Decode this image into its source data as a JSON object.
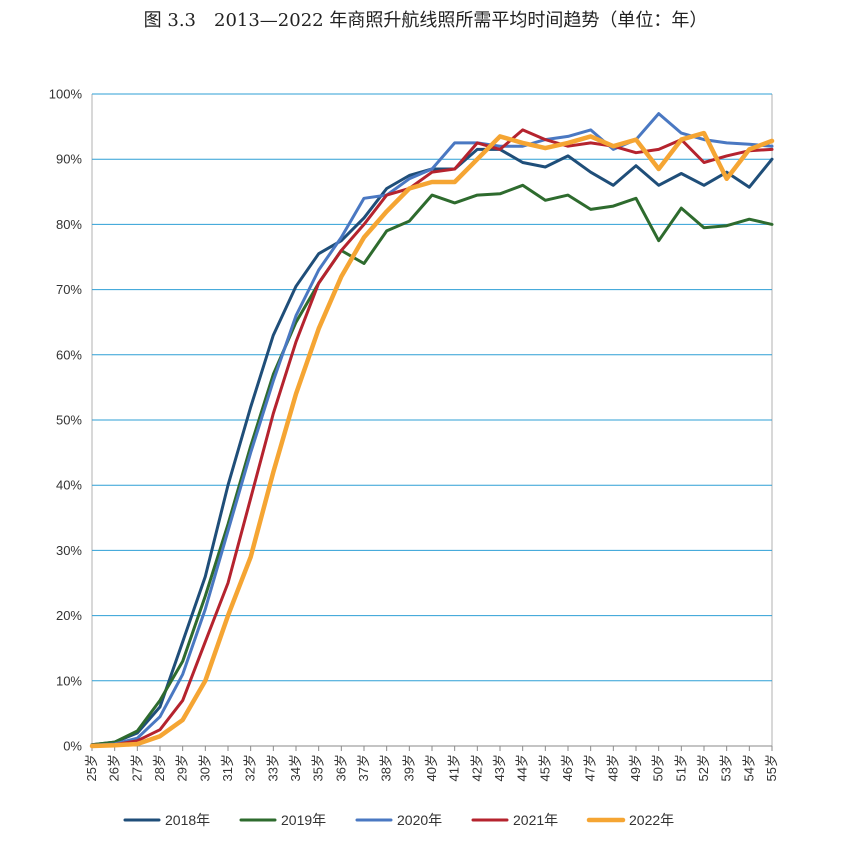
{
  "title": "图 3.3　2013—2022 年商照升航线照所需平均时间趋势（单位：年）",
  "chart_data": {
    "type": "line",
    "title": "图 3.3　2013—2022 年商照升航线照所需平均时间趋势（单位：年）",
    "xlabel": "",
    "ylabel": "",
    "ylim": [
      0,
      100
    ],
    "yticks": [
      "0%",
      "10%",
      "20%",
      "30%",
      "40%",
      "50%",
      "60%",
      "70%",
      "80%",
      "90%",
      "100%"
    ],
    "grid": true,
    "legend_position": "bottom",
    "categories": [
      "25岁",
      "26岁",
      "27岁",
      "28岁",
      "29岁",
      "30岁",
      "31岁",
      "32岁",
      "33岁",
      "34岁",
      "35岁",
      "36岁",
      "37岁",
      "38岁",
      "39岁",
      "40岁",
      "41岁",
      "42岁",
      "43岁",
      "44岁",
      "45岁",
      "46岁",
      "47岁",
      "48岁",
      "49岁",
      "50岁",
      "51岁",
      "52岁",
      "53岁",
      "54岁",
      "55岁"
    ],
    "series": [
      {
        "name": "2018年",
        "color": "#1f4e79",
        "width": 3,
        "values": [
          0.2,
          0.6,
          2,
          6,
          16,
          26,
          40,
          52,
          63,
          70.5,
          75.5,
          77.5,
          81,
          85.5,
          87.5,
          88.5,
          88.5,
          91.5,
          91.5,
          89.5,
          88.8,
          90.5,
          88,
          86,
          89,
          86,
          87.8,
          86,
          88,
          85.7,
          90
        ]
      },
      {
        "name": "2019年",
        "color": "#2e6b2e",
        "width": 3,
        "values": [
          0.2,
          0.6,
          2.3,
          7,
          13,
          23,
          34,
          46,
          57,
          65,
          71,
          76,
          74,
          79,
          80.5,
          84.5,
          83.3,
          84.5,
          84.7,
          86,
          83.7,
          84.5,
          82.3,
          82.8,
          84,
          77.5,
          82.5,
          79.5,
          79.8,
          80.8,
          80
        ]
      },
      {
        "name": "2020年",
        "color": "#4a78c2",
        "width": 3,
        "values": [
          0.1,
          0.3,
          1.2,
          4.5,
          11,
          21,
          33,
          45,
          56,
          66,
          73,
          78,
          84,
          84.5,
          87,
          88.5,
          92.5,
          92.5,
          92,
          92,
          93,
          93.5,
          94.5,
          91.5,
          93,
          97,
          94,
          93,
          92.5,
          92.3,
          92
        ]
      },
      {
        "name": "2021年",
        "color": "#b5232e",
        "width": 3,
        "values": [
          0.1,
          0.2,
          0.8,
          2.5,
          7,
          16,
          25,
          38,
          51,
          62,
          71,
          76,
          80,
          84.5,
          85.5,
          88,
          88.5,
          92.5,
          91.5,
          94.5,
          93,
          92,
          92.5,
          92,
          91,
          91.5,
          93,
          89.5,
          90.5,
          91.3,
          91.5
        ]
      },
      {
        "name": "2022年",
        "color": "#f5a533",
        "width": 4.5,
        "values": [
          0,
          0.1,
          0.3,
          1.5,
          4,
          10,
          20,
          29,
          42,
          54,
          64,
          72,
          78,
          82,
          85.5,
          86.5,
          86.5,
          90,
          93.5,
          92.5,
          91.7,
          92.5,
          93.5,
          92,
          93,
          88.5,
          93,
          94,
          87,
          91.5,
          92.8
        ]
      }
    ]
  }
}
